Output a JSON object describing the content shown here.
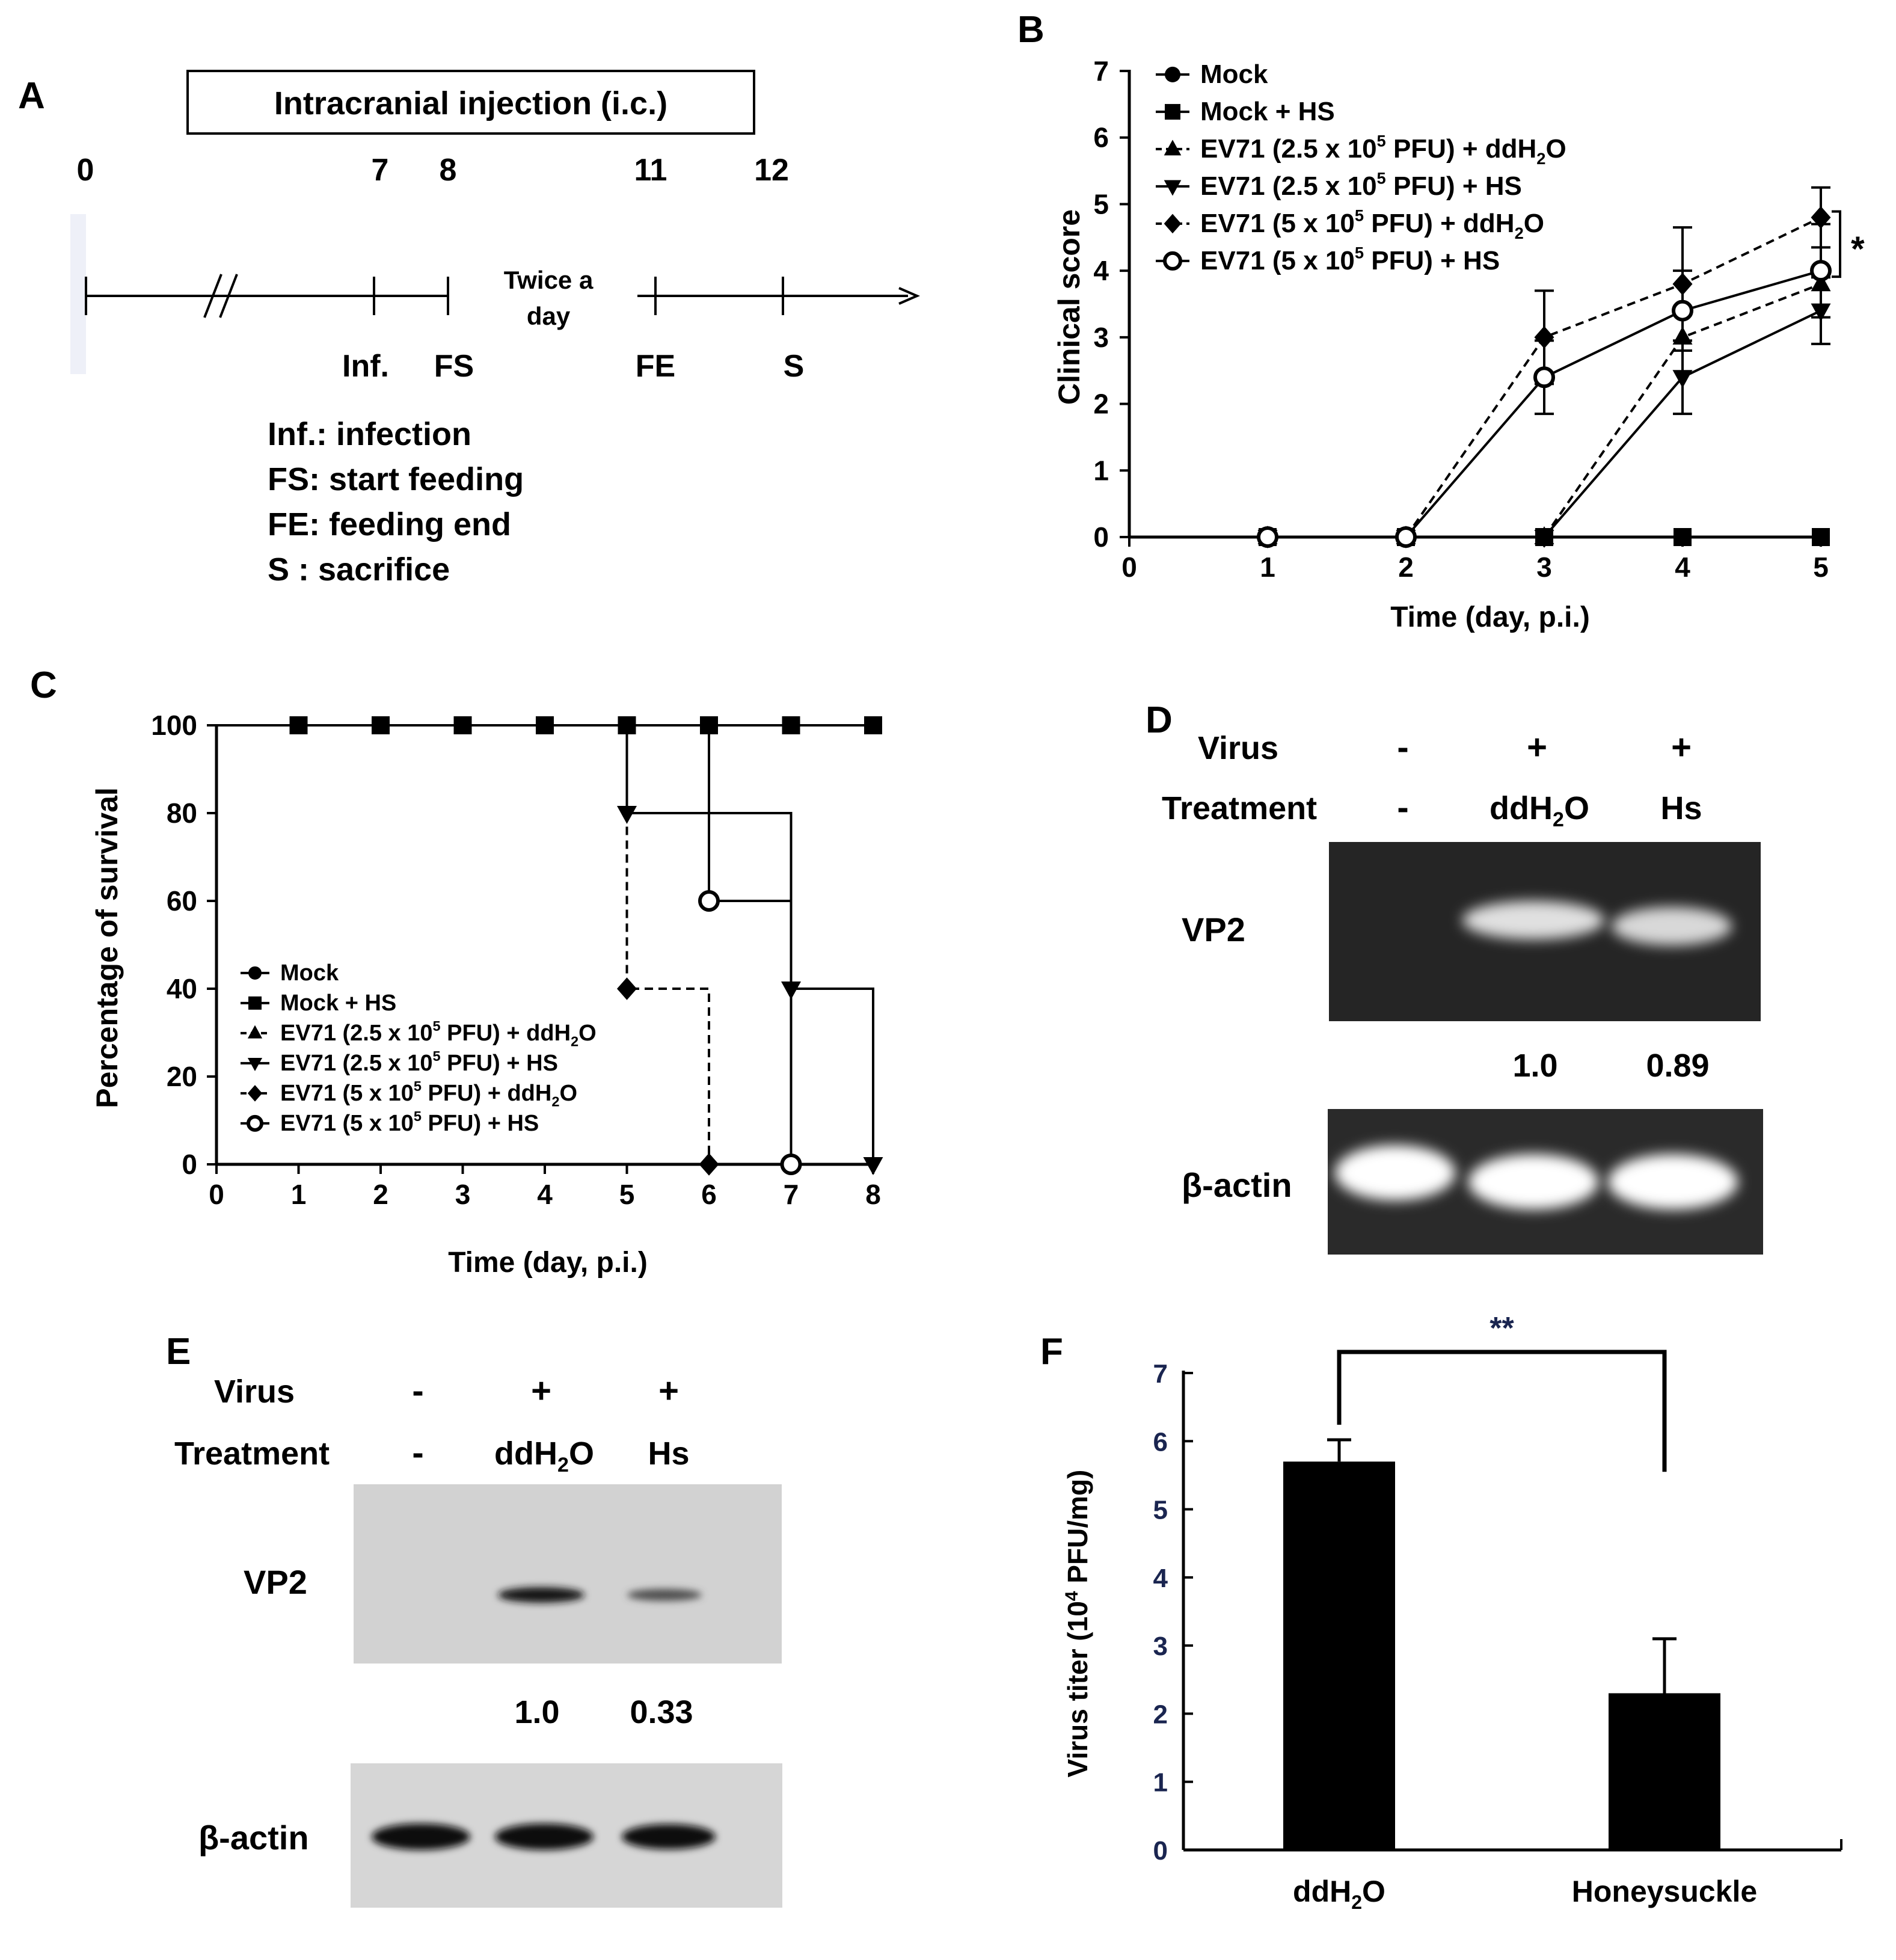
{
  "panel_letters": {
    "a": "A",
    "b": "B",
    "c": "C",
    "d": "D",
    "e": "E",
    "f": "F"
  },
  "panelA": {
    "box_title": "Intracranial injection (i.c.)",
    "days": [
      "0",
      "7",
      "8",
      "11",
      "12"
    ],
    "interval": [
      "Twice a",
      "day"
    ],
    "events": [
      "Inf.",
      "FS",
      "FE",
      "S"
    ],
    "legend": [
      {
        "abbr": "Inf.",
        "text": ": infection"
      },
      {
        "abbr": "FS",
        "text": ": start feeding"
      },
      {
        "abbr": "FE",
        "text": ": feeding end"
      },
      {
        "abbr": "S",
        "text": " : sacrifice"
      }
    ]
  },
  "legend_text": [
    {
      "pre": "Mock",
      "sup": "",
      "mid": "",
      "sub": "",
      "post": ""
    },
    {
      "pre": "Mock + HS",
      "sup": "",
      "mid": "",
      "sub": "",
      "post": ""
    },
    {
      "pre": "EV71 (2.5 x 10",
      "sup": "5",
      "mid": " PFU) + ddH",
      "sub": "2",
      "post": "O"
    },
    {
      "pre": "EV71 (2.5 x 10",
      "sup": "5",
      "mid": " PFU) + HS",
      "sub": "",
      "post": ""
    },
    {
      "pre": "EV71 (5 x 10",
      "sup": "5",
      "mid": " PFU) + ddH",
      "sub": "2",
      "post": "O"
    },
    {
      "pre": "EV71 (5 x 10",
      "sup": "5",
      "mid": " PFU) + HS",
      "sub": "",
      "post": ""
    }
  ],
  "gelD": {
    "row_labels": [
      "Virus",
      "Treatment"
    ],
    "virus": [
      "-",
      "+",
      "+"
    ],
    "treatment": [
      {
        "t": "-",
        "sub": ""
      },
      {
        "t": "ddH",
        "sub": "2",
        "post": "O"
      },
      {
        "t": "Hs",
        "sub": "",
        "post": ""
      }
    ],
    "vp2_label": "VP2",
    "ratios": [
      "1.0",
      "0.89"
    ],
    "actin_label": "β-actin"
  },
  "gelE": {
    "row_labels": [
      "Virus",
      "Treatment"
    ],
    "virus": [
      "-",
      "+",
      "+"
    ],
    "treatment": [
      {
        "t": "-",
        "sub": ""
      },
      {
        "t": "ddH",
        "sub": "2",
        "post": "O"
      },
      {
        "t": "Hs",
        "sub": "",
        "post": ""
      }
    ],
    "vp2_label": "VP2",
    "ratios": [
      "1.0",
      "0.33"
    ],
    "actin_label": "β-actin"
  },
  "chart_data": [
    {
      "panel": "B",
      "type": "line",
      "xlabel": "Time (day, p.i.)",
      "ylabel": "Clinical score",
      "xlim": [
        0,
        5
      ],
      "ylim": [
        0,
        7
      ],
      "x_ticks": [
        0,
        1,
        2,
        3,
        4,
        5
      ],
      "y_ticks": [
        0,
        1,
        2,
        3,
        4,
        5,
        6,
        7
      ],
      "x": [
        1,
        2,
        3,
        4,
        5
      ],
      "significance": "*",
      "series": [
        {
          "name": "Mock",
          "marker": "circle",
          "dash": false,
          "values": [
            0,
            0,
            0,
            0,
            0
          ]
        },
        {
          "name": "Mock + HS",
          "marker": "square",
          "dash": false,
          "values": [
            0,
            0,
            0,
            0,
            0
          ]
        },
        {
          "name": "EV71 (2.5 x 10^5 PFU) + ddH2O",
          "marker": "triangle-up",
          "dash": true,
          "values": [
            0,
            0,
            0,
            3.0,
            3.8
          ]
        },
        {
          "name": "EV71 (2.5 x 10^5 PFU) + HS",
          "marker": "triangle-down",
          "dash": false,
          "values": [
            0,
            0,
            0,
            2.4,
            3.4
          ],
          "error": [
            0,
            0,
            0,
            0.55,
            0.5
          ]
        },
        {
          "name": "EV71 (5 x 10^5 PFU) + ddH2O",
          "marker": "diamond",
          "dash": true,
          "values": [
            0,
            0,
            3.0,
            3.8,
            4.8
          ],
          "error": [
            0,
            0,
            0.7,
            0.85,
            0.45
          ]
        },
        {
          "name": "EV71 (5 x 10^5 PFU) + HS",
          "marker": "open-circle",
          "dash": false,
          "values": [
            0,
            0,
            2.4,
            3.4,
            4.0
          ],
          "error": [
            0,
            0,
            0.55,
            0.6,
            0.7
          ]
        }
      ]
    },
    {
      "panel": "C",
      "type": "line",
      "step": true,
      "xlabel": "Time (day, p.i.)",
      "ylabel": "Percentage of survival",
      "xlim": [
        0,
        8
      ],
      "ylim": [
        0,
        100
      ],
      "x_ticks": [
        0,
        1,
        2,
        3,
        4,
        5,
        6,
        7,
        8
      ],
      "y_ticks": [
        0,
        20,
        40,
        60,
        80,
        100
      ],
      "series": [
        {
          "name": "Mock",
          "marker": "circle",
          "dash": false,
          "x": [
            1,
            2,
            3,
            4,
            5,
            6,
            7,
            8
          ],
          "values": [
            100,
            100,
            100,
            100,
            100,
            100,
            100,
            100
          ]
        },
        {
          "name": "Mock + HS",
          "marker": "square",
          "dash": false,
          "x": [
            1,
            2,
            3,
            4,
            5,
            6,
            7,
            8
          ],
          "values": [
            100,
            100,
            100,
            100,
            100,
            100,
            100,
            100
          ]
        },
        {
          "name": "EV71 (2.5 x 10^5 PFU) + ddH2O",
          "marker": "triangle-up",
          "dash": true,
          "x": [],
          "values": []
        },
        {
          "name": "EV71 (2.5 x 10^5 PFU) + HS",
          "marker": "triangle-down",
          "dash": false,
          "x": [
            5,
            7,
            8
          ],
          "values": [
            80,
            40,
            0
          ]
        },
        {
          "name": "EV71 (5 x 10^5 PFU) + ddH2O",
          "marker": "diamond",
          "dash": true,
          "x": [
            5,
            6
          ],
          "values": [
            40,
            0
          ]
        },
        {
          "name": "EV71 (5 x 10^5 PFU) + HS",
          "marker": "open-circle",
          "dash": false,
          "x": [
            6,
            7
          ],
          "values": [
            60,
            0
          ]
        }
      ]
    },
    {
      "panel": "F",
      "type": "bar",
      "categories": [
        "ddH2O",
        "Honeysuckle"
      ],
      "values": [
        5.7,
        2.3
      ],
      "errors": [
        0.32,
        0.8
      ],
      "ylabel": "Virus titer (10^4 PFU/mg)",
      "ylim": [
        0,
        7
      ],
      "y_ticks": [
        0,
        1,
        2,
        3,
        4,
        5,
        6,
        7
      ],
      "significance": "**"
    }
  ]
}
